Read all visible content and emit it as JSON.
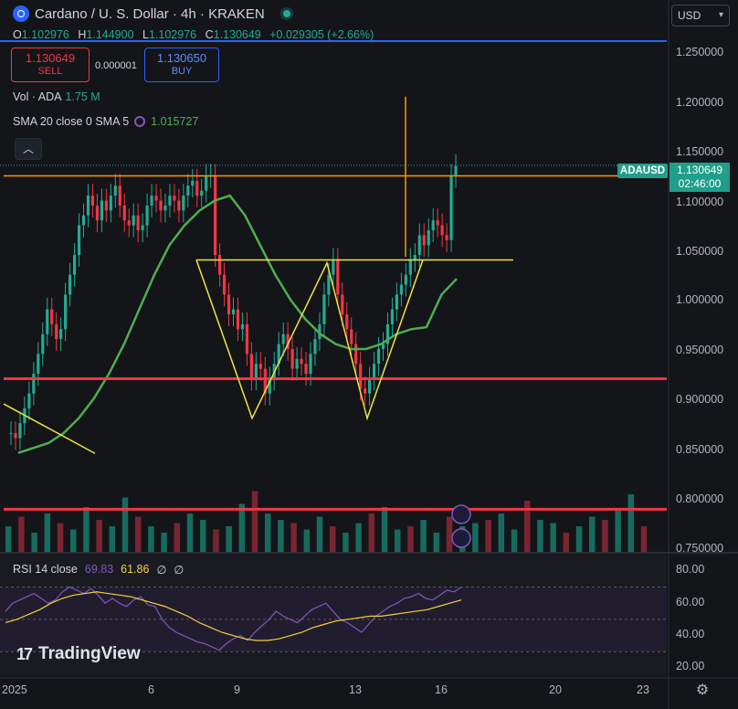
{
  "header": {
    "title": "Cardano / U. S. Dollar · 4h · KRAKEN",
    "ohlc": [
      {
        "k": "O",
        "v": "1.102976"
      },
      {
        "k": "H",
        "v": "1.144900"
      },
      {
        "k": "L",
        "v": "1.102976"
      },
      {
        "k": "C",
        "v": "1.130649"
      }
    ],
    "change": "+0.029305 (+2.66%)"
  },
  "trade": {
    "sell_price": "1.130649",
    "sell_label": "SELL",
    "spread": "0.000001",
    "buy_price": "1.130650",
    "buy_label": "BUY"
  },
  "indicators": {
    "volume_label": "Vol · ADA",
    "volume_value": "1.75 M",
    "sma_label": "SMA 20 close 0 SMA 5",
    "sma_value": "1.015727",
    "collapse_icon": "chevron-up-icon"
  },
  "currency_selector": "USD",
  "price_axis": [
    "1.250000",
    "1.200000",
    "1.150000",
    "1.100000",
    "1.050000",
    "1.000000",
    "0.950000",
    "0.900000",
    "0.850000",
    "0.800000",
    "0.750000"
  ],
  "symbol_badge": "ADAUSD",
  "current_price": "1.130649",
  "countdown": "02:46:00",
  "rsi": {
    "label": "RSI 14 close",
    "value": "69.83",
    "ma_value": "61.86",
    "extra1": "∅",
    "extra2": "∅",
    "axis": [
      "80.00",
      "60.00",
      "40.00",
      "20.00"
    ]
  },
  "time_axis": [
    "2025",
    "6",
    "9",
    "13",
    "16",
    "20",
    "23"
  ],
  "branding": "TradingView",
  "colors": {
    "up": "#22ab94",
    "down": "#f23645",
    "sma": "#4caf50",
    "accent": "#2962ff",
    "rsi": "#7e57c2",
    "rsi_ma": "#f4d03f",
    "pattern": "#f0e442",
    "level": "#f23645",
    "orange": "#ff9800"
  },
  "chart_data": {
    "type": "candlestick",
    "title": "Cardano / U. S. Dollar · 4h · KRAKEN",
    "ylim": [
      0.74,
      1.27
    ],
    "x_ticks": [
      "2025",
      "6",
      "9",
      "13",
      "16",
      "20",
      "23"
    ],
    "series_close": [
      0.86,
      0.855,
      0.87,
      0.885,
      0.9,
      0.92,
      0.94,
      0.96,
      0.985,
      0.97,
      0.955,
      0.965,
      1.0,
      1.02,
      1.04,
      1.07,
      1.08,
      1.1,
      1.09,
      1.075,
      1.095,
      1.085,
      1.1,
      1.11,
      1.09,
      1.075,
      1.07,
      1.08,
      1.065,
      1.07,
      1.09,
      1.1,
      1.095,
      1.085,
      1.09,
      1.1,
      1.095,
      1.085,
      1.1,
      1.11,
      1.115,
      1.1,
      1.105,
      1.12,
      1.12,
      1.04,
      1.02,
      1.0,
      0.98,
      0.985,
      0.965,
      0.97,
      0.94,
      0.915,
      0.93,
      0.925,
      0.9,
      0.915,
      0.93,
      0.95,
      0.96,
      0.945,
      0.925,
      0.935,
      0.93,
      0.92,
      0.94,
      0.955,
      0.97,
      1.0,
      1.02,
      1.035,
      1.0,
      0.98,
      0.965,
      0.95,
      0.93,
      0.905,
      0.9,
      0.915,
      0.93,
      0.945,
      0.95,
      0.97,
      0.985,
      1.0,
      1.01,
      1.02,
      1.035,
      1.04,
      1.06,
      1.05,
      1.065,
      1.075,
      1.07,
      1.06,
      1.055,
      1.12,
      1.13
    ],
    "sma20": [
      0.84,
      0.845,
      0.85,
      0.86,
      0.875,
      0.895,
      0.92,
      0.95,
      0.985,
      1.02,
      1.05,
      1.07,
      1.085,
      1.095,
      1.1,
      1.08,
      1.05,
      1.02,
      0.995,
      0.975,
      0.96,
      0.95,
      0.945,
      0.945,
      0.95,
      0.96,
      0.965,
      0.967,
      1.0,
      1.016
    ],
    "volume": [
      0.4,
      0.55,
      0.3,
      0.6,
      0.45,
      0.35,
      0.7,
      0.5,
      0.4,
      0.85,
      0.55,
      0.4,
      0.3,
      0.45,
      0.6,
      0.5,
      0.35,
      0.4,
      0.75,
      0.95,
      0.6,
      0.5,
      0.45,
      0.35,
      0.55,
      0.4,
      0.3,
      0.45,
      0.6,
      0.7,
      0.35,
      0.4,
      0.5,
      0.3,
      0.55,
      0.4,
      0.45,
      0.5,
      0.6,
      0.35,
      0.8,
      0.5,
      0.45,
      0.3,
      0.4,
      0.55,
      0.5,
      0.65,
      0.9,
      0.4
    ],
    "levels": [
      0.915,
      0.783,
      1.035,
      1.12
    ],
    "rsi": [
      55,
      60,
      62,
      64,
      66,
      63,
      60,
      62,
      67,
      70,
      68,
      66,
      69,
      65,
      60,
      63,
      60,
      58,
      62,
      64,
      59,
      58,
      50,
      45,
      42,
      40,
      38,
      36,
      35,
      33,
      31,
      35,
      38,
      40,
      37,
      42,
      46,
      50,
      55,
      52,
      50,
      48,
      52,
      56,
      58,
      60,
      55,
      50,
      48,
      45,
      42,
      47,
      52,
      55,
      58,
      60,
      63,
      64,
      66,
      63,
      62,
      65,
      68,
      67,
      70
    ],
    "rsi_ma": [
      48,
      50,
      53,
      56,
      60,
      63,
      65,
      66,
      67,
      66,
      65,
      64,
      62,
      60,
      58,
      55,
      52,
      48,
      45,
      42,
      40,
      38,
      37,
      37,
      38,
      40,
      42,
      45,
      47,
      49,
      50,
      51,
      52,
      52,
      53,
      54,
      55,
      56,
      58,
      60,
      62
    ],
    "rsi_ylim": [
      15,
      90
    ]
  }
}
